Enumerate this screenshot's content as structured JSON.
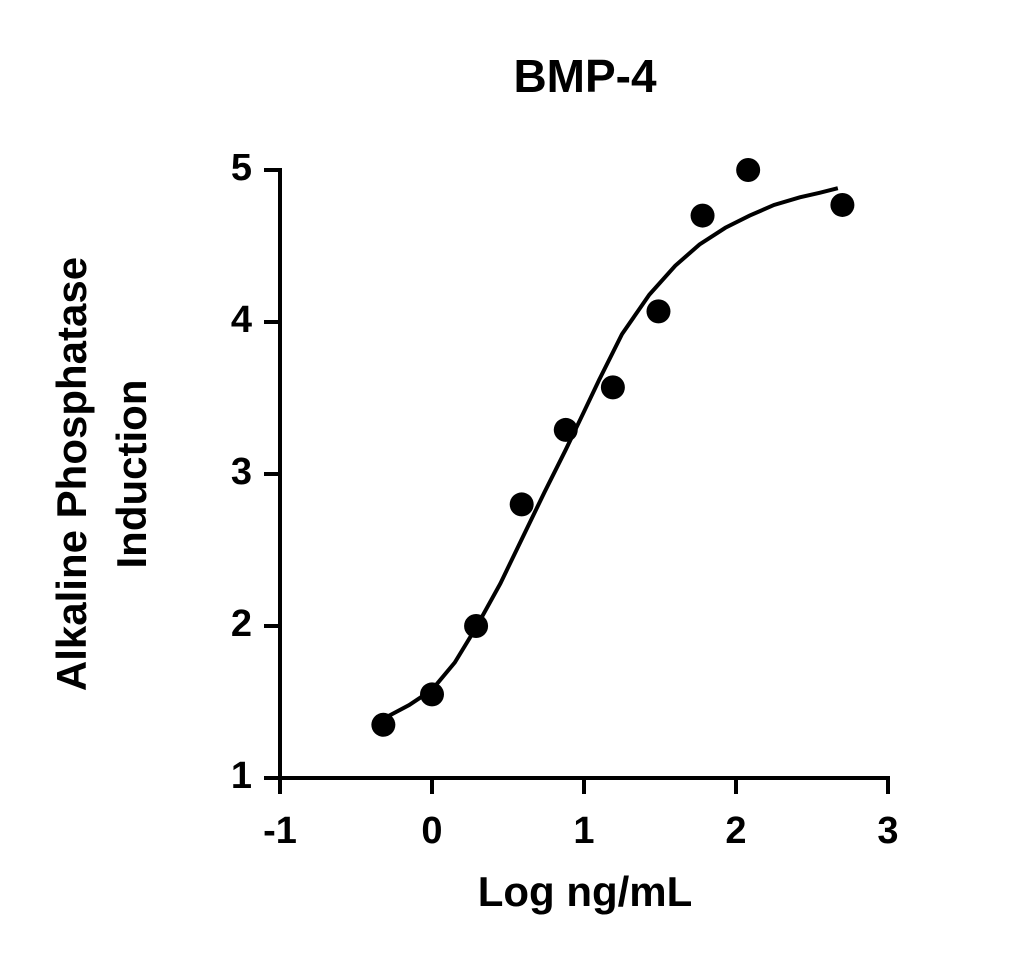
{
  "chart_data": {
    "type": "scatter",
    "title": "BMP-4",
    "xlabel": "Log ng/mL",
    "ylabel": [
      "Alkaline Phosphatase",
      "Induction"
    ],
    "xlim": [
      -1,
      3
    ],
    "xticks": [
      -1,
      0,
      1,
      2,
      3
    ],
    "ylim": [
      1,
      5
    ],
    "yticks": [
      1,
      2,
      3,
      4,
      5
    ],
    "grid": false,
    "series": [
      {
        "type": "scatter",
        "color": "#000000",
        "x": [
          -0.32,
          0,
          0.29,
          0.59,
          0.88,
          1.19,
          1.49,
          1.78,
          2.08,
          2.7
        ],
        "values": [
          1.35,
          1.55,
          2.0,
          2.8,
          3.29,
          3.57,
          4.07,
          4.7,
          5.0,
          4.77
        ]
      },
      {
        "type": "line",
        "color": "#000000",
        "x": [
          -0.32,
          -0.15,
          0,
          0.15,
          0.29,
          0.45,
          0.59,
          0.74,
          0.88,
          1.0,
          1.1,
          1.25,
          1.43,
          1.6,
          1.76,
          1.93,
          2.09,
          2.25,
          2.42,
          2.55,
          2.67
        ],
        "values": [
          1.39,
          1.48,
          1.58,
          1.76,
          1.99,
          2.28,
          2.57,
          2.88,
          3.16,
          3.41,
          3.62,
          3.92,
          4.18,
          4.37,
          4.51,
          4.62,
          4.7,
          4.77,
          4.82,
          4.85,
          4.88
        ]
      }
    ]
  }
}
